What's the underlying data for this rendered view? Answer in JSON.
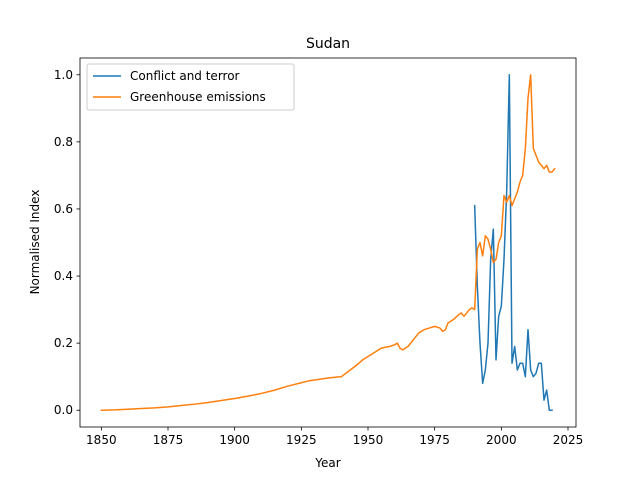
{
  "chart_data": {
    "type": "line",
    "title": "Sudan",
    "xlabel": "Year",
    "ylabel": "Normalised Index",
    "xlim": [
      1842,
      2028
    ],
    "ylim": [
      -0.05,
      1.05
    ],
    "xticks": [
      1850,
      1875,
      1900,
      1925,
      1950,
      1975,
      2000,
      2025
    ],
    "yticks": [
      0.0,
      0.2,
      0.4,
      0.6,
      0.8,
      1.0
    ],
    "xtick_labels": [
      "1850",
      "1875",
      "1900",
      "1925",
      "1950",
      "1975",
      "2000",
      "2025"
    ],
    "ytick_labels": [
      "0.0",
      "0.2",
      "0.4",
      "0.6",
      "0.8",
      "1.0"
    ],
    "grid": false,
    "legend_position": "upper left",
    "series": [
      {
        "name": "Conflict and terror",
        "color": "#1f77b4",
        "x": [
          1990,
          1991,
          1992,
          1993,
          1994,
          1995,
          1996,
          1997,
          1998,
          1999,
          2000,
          2001,
          2002,
          2003,
          2004,
          2005,
          2006,
          2007,
          2008,
          2009,
          2010,
          2011,
          2012,
          2013,
          2014,
          2015,
          2016,
          2017,
          2018,
          2019
        ],
        "y": [
          0.61,
          0.37,
          0.2,
          0.08,
          0.12,
          0.2,
          0.45,
          0.54,
          0.15,
          0.28,
          0.31,
          0.45,
          0.65,
          1.0,
          0.14,
          0.19,
          0.12,
          0.14,
          0.14,
          0.1,
          0.24,
          0.12,
          0.1,
          0.11,
          0.14,
          0.14,
          0.03,
          0.06,
          0.0,
          0.0
        ]
      },
      {
        "name": "Greenhouse emissions",
        "color": "#ff7f0e",
        "x": [
          1850,
          1855,
          1860,
          1865,
          1870,
          1875,
          1880,
          1885,
          1890,
          1895,
          1900,
          1905,
          1910,
          1915,
          1920,
          1925,
          1928,
          1930,
          1935,
          1940,
          1945,
          1948,
          1950,
          1953,
          1955,
          1958,
          1960,
          1961,
          1962,
          1963,
          1965,
          1967,
          1969,
          1971,
          1973,
          1975,
          1977,
          1978,
          1979,
          1980,
          1982,
          1984,
          1985,
          1986,
          1987,
          1988,
          1989,
          1990,
          1991,
          1992,
          1993,
          1994,
          1995,
          1996,
          1997,
          1998,
          1999,
          2000,
          2001,
          2002,
          2003,
          2004,
          2005,
          2006,
          2007,
          2008,
          2009,
          2010,
          2011,
          2012,
          2013,
          2014,
          2015,
          2016,
          2017,
          2018,
          2019,
          2020
        ],
        "y": [
          0.0,
          0.001,
          0.003,
          0.005,
          0.007,
          0.01,
          0.014,
          0.018,
          0.023,
          0.029,
          0.035,
          0.042,
          0.05,
          0.06,
          0.072,
          0.082,
          0.088,
          0.09,
          0.096,
          0.1,
          0.13,
          0.15,
          0.16,
          0.175,
          0.185,
          0.19,
          0.195,
          0.2,
          0.185,
          0.18,
          0.19,
          0.21,
          0.23,
          0.24,
          0.245,
          0.25,
          0.245,
          0.235,
          0.24,
          0.26,
          0.27,
          0.285,
          0.29,
          0.28,
          0.29,
          0.3,
          0.305,
          0.3,
          0.48,
          0.5,
          0.46,
          0.52,
          0.51,
          0.48,
          0.44,
          0.45,
          0.5,
          0.52,
          0.64,
          0.62,
          0.64,
          0.61,
          0.63,
          0.65,
          0.68,
          0.7,
          0.78,
          0.93,
          1.0,
          0.78,
          0.76,
          0.74,
          0.73,
          0.72,
          0.73,
          0.71,
          0.71,
          0.72
        ]
      }
    ]
  }
}
